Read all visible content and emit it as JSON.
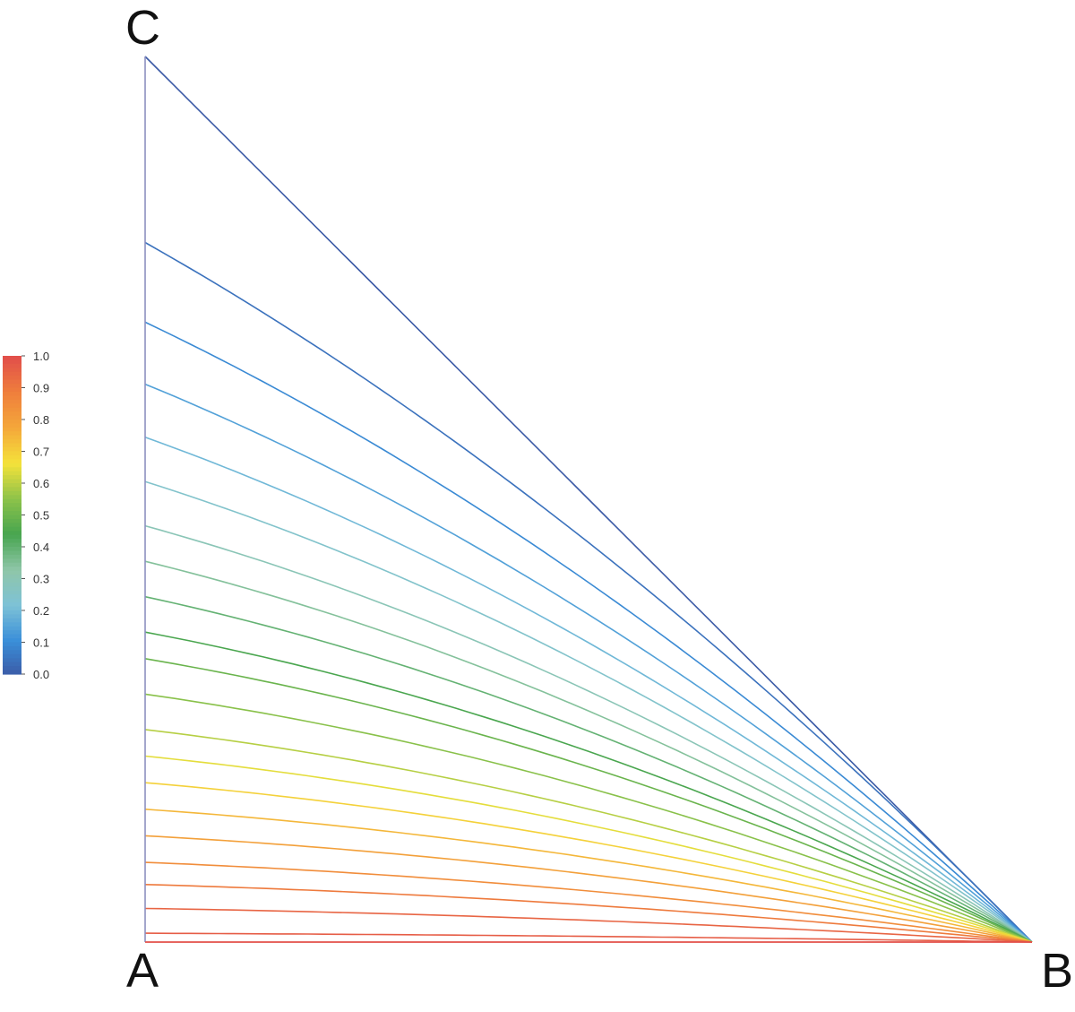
{
  "vertices": {
    "a": "A",
    "b": "B",
    "c": "C"
  },
  "colorbar": {
    "ticks": [
      "0.0",
      "0.1",
      "0.2",
      "0.3",
      "0.4",
      "0.5",
      "0.6",
      "0.7",
      "0.8",
      "0.9",
      "1.0"
    ],
    "range": [
      0,
      1
    ],
    "colors": [
      "#3b5aa6",
      "#3a8fd9",
      "#7ec2d6",
      "#8fc6a8",
      "#47a54f",
      "#8cc24a",
      "#f4e23a",
      "#f4a83a",
      "#ef7f3c",
      "#e2504a"
    ]
  },
  "chart_data": {
    "type": "line",
    "levels": [
      0.0,
      0.1,
      0.2,
      0.3,
      0.4,
      0.5,
      0.6,
      0.7,
      0.8,
      0.9,
      1.0
    ],
    "contour_heights_at_A": [
      1.0,
      0.79,
      0.7,
      0.63,
      0.57,
      0.52,
      0.47,
      0.43,
      0.39,
      0.35,
      0.32,
      0.28,
      0.24,
      0.21,
      0.18,
      0.15,
      0.12,
      0.09,
      0.065,
      0.038,
      0.01,
      0.0
    ],
    "contour_values": [
      0.0,
      0.05,
      0.1,
      0.15,
      0.2,
      0.25,
      0.3,
      0.35,
      0.4,
      0.45,
      0.5,
      0.55,
      0.6,
      0.65,
      0.7,
      0.75,
      0.8,
      0.85,
      0.9,
      0.95,
      0.97,
      1.0
    ]
  }
}
